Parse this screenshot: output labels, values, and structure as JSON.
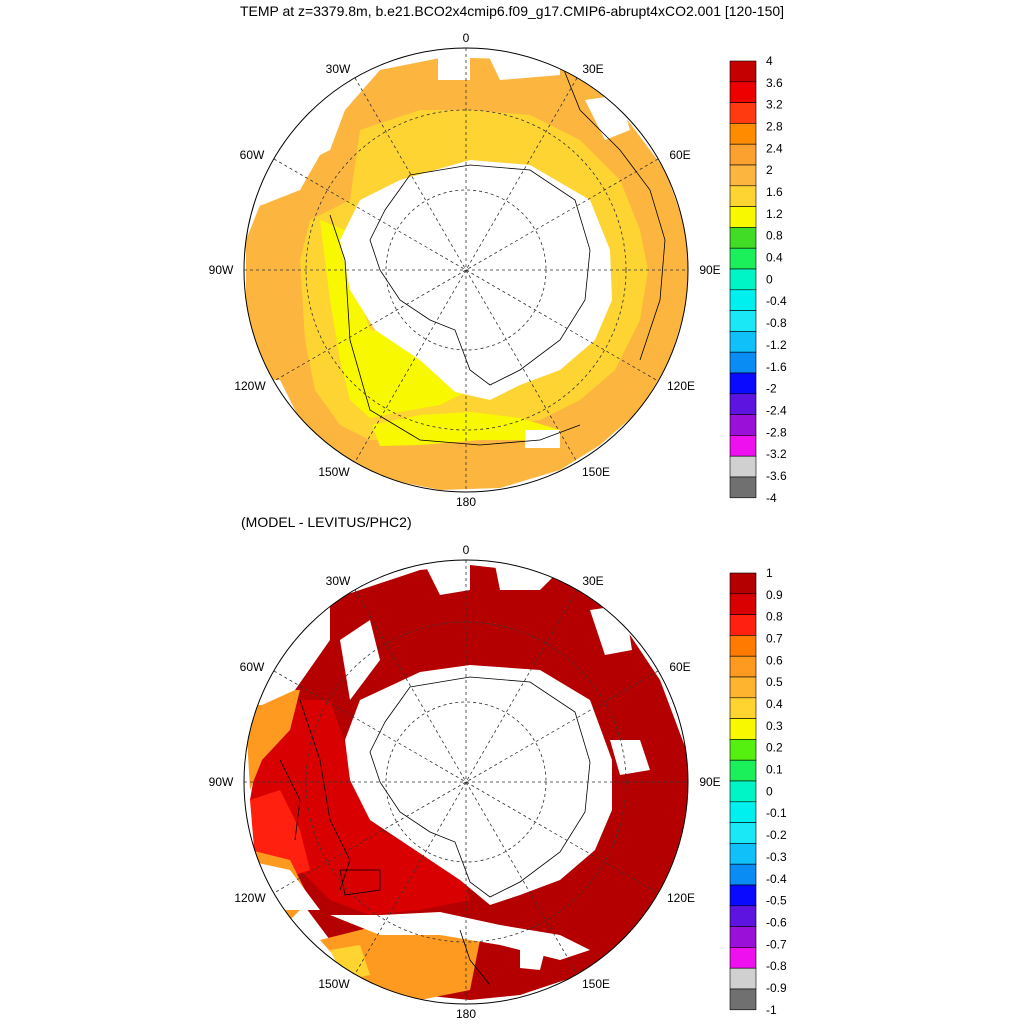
{
  "title": "TEMP at z=3379.8m, b.e21.BCO2x4cmip6.f09_g17.CMIP6-abrupt4xCO2.001 [120-150]",
  "subtitle": "(MODEL - LEVITUS/PHC2)",
  "longitude_labels": {
    "lon_0": "0",
    "lon_30e": "30E",
    "lon_60e": "60E",
    "lon_90e": "90E",
    "lon_120e": "120E",
    "lon_150e": "150E",
    "lon_180": "180",
    "lon_150w": "150W",
    "lon_120w": "120W",
    "lon_90w": "90W",
    "lon_60w": "60W",
    "lon_30w": "30W"
  },
  "top_colorbar": {
    "labels": [
      "4",
      "3.6",
      "3.2",
      "2.8",
      "2.4",
      "2",
      "1.6",
      "1.2",
      "0.8",
      "0.4",
      "0",
      "-0.4",
      "-0.8",
      "-1.2",
      "-1.6",
      "-2",
      "-2.4",
      "-2.8",
      "-3.2",
      "-3.6",
      "-4"
    ],
    "colors": [
      "#c40000",
      "#ee0000",
      "#ff3a10",
      "#ff8c00",
      "#fca030",
      "#fcb640",
      "#fdd431",
      "#f8f800",
      "#41dc26",
      "#1bf05a",
      "#00f5c4",
      "#00f0f0",
      "#1be8f7",
      "#10c0f8",
      "#0a8cf5",
      "#0a0aff",
      "#5e14e0",
      "#9a10d8",
      "#ee10ee",
      "#d0d0d0",
      "#707070"
    ]
  },
  "bottom_colorbar": {
    "labels": [
      "1",
      "0.9",
      "0.8",
      "0.7",
      "0.6",
      "0.5",
      "0.4",
      "0.3",
      "0.2",
      "0.1",
      "0",
      "-0.1",
      "-0.2",
      "-0.3",
      "-0.4",
      "-0.5",
      "-0.6",
      "-0.7",
      "-0.8",
      "-0.9",
      "-1"
    ],
    "colors": [
      "#b40000",
      "#d80000",
      "#ff2010",
      "#ff7a00",
      "#ff9a20",
      "#ffb430",
      "#ffd430",
      "#f8f800",
      "#55f010",
      "#1bf05a",
      "#00f5c4",
      "#00f0f0",
      "#1be8f7",
      "#10c0f8",
      "#0a8cf5",
      "#0a0aff",
      "#5e14e0",
      "#9a10d8",
      "#ee10ee",
      "#d0d0d0",
      "#707070"
    ]
  },
  "top_map_colors": {
    "warm_region": "#fcb640",
    "mid_region": "#fdd431",
    "yellow_region": "#f8f800"
  },
  "bottom_map_colors": {
    "dark_red": "#b40000",
    "red": "#d80000",
    "bright_red": "#ff2010",
    "orange": "#ff9a20",
    "yellow": "#ffd430"
  }
}
